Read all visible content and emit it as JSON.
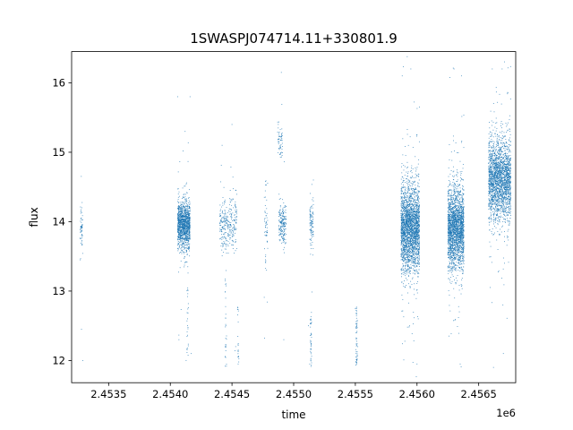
{
  "chart_data": {
    "type": "scatter",
    "title": "1SWASPJ074714.11+330801.9",
    "xlabel": "time",
    "ylabel": "flux",
    "x_offset_label": "1e6",
    "xlim": [
      2453200,
      2456800
    ],
    "ylim": [
      11.68,
      16.45
    ],
    "x_ticks": [
      2453500,
      2454000,
      2454500,
      2455000,
      2455500,
      2456000,
      2456500
    ],
    "x_tick_labels": [
      "2.4535",
      "2.4540",
      "2.4545",
      "2.4550",
      "2.4555",
      "2.4560",
      "2.4565"
    ],
    "y_ticks": [
      12,
      13,
      14,
      15,
      16
    ],
    "y_tick_labels": [
      "12",
      "13",
      "14",
      "15",
      "16"
    ],
    "grid": false,
    "legend": "none",
    "marker_color": "#1f77b4",
    "clusters": [
      {
        "x_min": 2453270,
        "x_max": 2453290,
        "y_center": 13.95,
        "y_spread": 0.18,
        "n": 60
      },
      {
        "x_min": 2454060,
        "x_max": 2454160,
        "y_center": 13.95,
        "y_spread": 0.16,
        "n": 1300
      },
      {
        "x_min": 2454400,
        "x_max": 2454540,
        "y_center": 13.95,
        "y_spread": 0.2,
        "n": 300
      },
      {
        "x_min": 2454760,
        "x_max": 2454790,
        "y_center": 13.9,
        "y_spread": 0.25,
        "n": 60
      },
      {
        "x_min": 2454870,
        "x_max": 2454910,
        "y_center": 15.15,
        "y_spread": 0.12,
        "n": 60
      },
      {
        "x_min": 2454880,
        "x_max": 2454940,
        "y_center": 13.95,
        "y_spread": 0.15,
        "n": 200
      },
      {
        "x_min": 2455130,
        "x_max": 2455160,
        "y_center": 13.95,
        "y_spread": 0.15,
        "n": 100
      },
      {
        "x_min": 2455870,
        "x_max": 2456020,
        "y_center": 13.9,
        "y_spread": 0.3,
        "n": 2500
      },
      {
        "x_min": 2456250,
        "x_max": 2456380,
        "y_center": 13.9,
        "y_spread": 0.28,
        "n": 2200
      },
      {
        "x_min": 2456580,
        "x_max": 2456760,
        "y_center": 14.6,
        "y_spread": 0.28,
        "n": 2200
      }
    ],
    "isolated_points": [
      [
        2453290,
        12.0
      ],
      [
        2453280,
        12.45
      ],
      [
        2453270,
        13.45
      ],
      [
        2454060,
        15.8
      ],
      [
        2454120,
        15.3
      ],
      [
        2454160,
        15.8
      ],
      [
        2454070,
        12.3
      ],
      [
        2454140,
        12.6
      ],
      [
        2454170,
        12.1
      ],
      [
        2454420,
        15.1
      ],
      [
        2454450,
        12.5
      ],
      [
        2454500,
        15.4
      ],
      [
        2454530,
        12.2
      ],
      [
        2454550,
        11.95
      ],
      [
        2454780,
        13.3
      ],
      [
        2454900,
        16.15
      ],
      [
        2454920,
        12.3
      ],
      [
        2455120,
        12.5
      ],
      [
        2455140,
        12.2
      ],
      [
        2455130,
        11.95
      ],
      [
        2455160,
        14.6
      ],
      [
        2455500,
        12.75
      ],
      [
        2455520,
        12.2
      ],
      [
        2455510,
        11.95
      ],
      [
        2455880,
        16.1
      ],
      [
        2455950,
        16.2
      ],
      [
        2456000,
        11.95
      ],
      [
        2456010,
        12.6
      ],
      [
        2456300,
        16.2
      ],
      [
        2456360,
        16.1
      ],
      [
        2456350,
        11.95
      ],
      [
        2456610,
        16.2
      ],
      [
        2456690,
        16.2
      ],
      [
        2456620,
        11.9
      ],
      [
        2456700,
        12.1
      ]
    ],
    "sparse_columns": [
      {
        "x": 2454140,
        "y_min": 12.0,
        "y_max": 13.1,
        "n": 25
      },
      {
        "x": 2454450,
        "y_min": 11.9,
        "y_max": 13.4,
        "n": 30
      },
      {
        "x": 2454550,
        "y_min": 11.9,
        "y_max": 12.8,
        "n": 20
      },
      {
        "x": 2455140,
        "y_min": 11.9,
        "y_max": 12.7,
        "n": 40
      },
      {
        "x": 2455510,
        "y_min": 11.9,
        "y_max": 12.8,
        "n": 60
      }
    ]
  }
}
